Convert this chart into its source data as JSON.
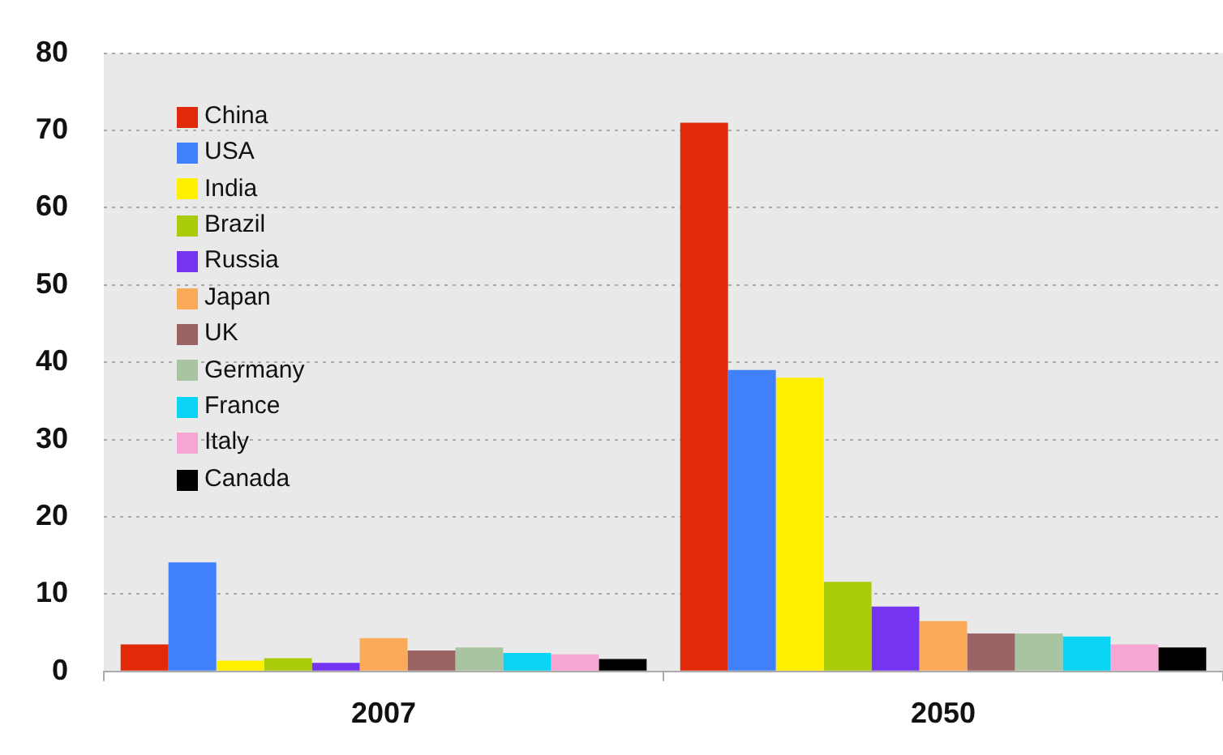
{
  "chart_data": {
    "type": "bar",
    "categories": [
      "2007",
      "2050"
    ],
    "series": [
      {
        "name": "China",
        "color": "#e02a0a",
        "values": [
          3.5,
          71
        ]
      },
      {
        "name": "USA",
        "color": "#4080fa",
        "values": [
          14.1,
          39
        ]
      },
      {
        "name": "India",
        "color": "#fff000",
        "values": [
          1.4,
          38
        ]
      },
      {
        "name": "Brazil",
        "color": "#a8cc0a",
        "values": [
          1.7,
          11.6
        ]
      },
      {
        "name": "Russia",
        "color": "#7533f2",
        "values": [
          1.1,
          8.4
        ]
      },
      {
        "name": "Japan",
        "color": "#fbaa58",
        "values": [
          4.3,
          6.5
        ]
      },
      {
        "name": "UK",
        "color": "#9a6464",
        "values": [
          2.7,
          4.9
        ]
      },
      {
        "name": "Germany",
        "color": "#a8c4a0",
        "values": [
          3.1,
          4.9
        ]
      },
      {
        "name": "France",
        "color": "#0ad4f4",
        "values": [
          2.4,
          4.5
        ]
      },
      {
        "name": "Italy",
        "color": "#f7a6d4",
        "values": [
          2.2,
          3.5
        ]
      },
      {
        "name": "Canada",
        "color": "#000000",
        "values": [
          1.6,
          3.1
        ]
      }
    ],
    "ylim": [
      0,
      80
    ],
    "yticks": [
      0,
      10,
      20,
      30,
      40,
      50,
      60,
      70,
      80
    ],
    "grid": "y",
    "legend": "top left"
  }
}
